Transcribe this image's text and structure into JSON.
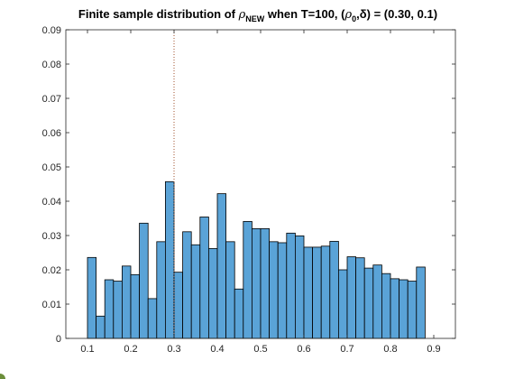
{
  "chart_data": {
    "type": "bar",
    "title": {
      "prefix": "Finite sample distribution of ",
      "rho": "ρ",
      "rho_subscript": "NEW",
      "mid": " when T=100, (",
      "rho0": "ρ",
      "rho0_subscript": "0",
      "tail": ",δ) = (0.30, 0.1)"
    },
    "xlabel": "",
    "ylabel": "",
    "xlim": [
      0.05,
      0.95
    ],
    "ylim": [
      0,
      0.09
    ],
    "x_ticks": [
      0.1,
      0.2,
      0.3,
      0.4,
      0.5,
      0.6,
      0.7,
      0.8,
      0.9
    ],
    "x_tick_labels": [
      "0.1",
      "0.2",
      "0.3",
      "0.4",
      "0.5",
      "0.6",
      "0.7",
      "0.8",
      "0.9"
    ],
    "y_ticks": [
      0,
      0.01,
      0.02,
      0.03,
      0.04,
      0.05,
      0.06,
      0.07,
      0.08,
      0.09
    ],
    "y_tick_labels": [
      "0",
      "0.01",
      "0.02",
      "0.03",
      "0.04",
      "0.05",
      "0.06",
      "0.07",
      "0.08",
      "0.09"
    ],
    "bin_start": 0.1,
    "bin_width": 0.02,
    "values": [
      0.0236,
      0.0065,
      0.0171,
      0.0167,
      0.0211,
      0.0186,
      0.0336,
      0.0116,
      0.0282,
      0.0457,
      0.0193,
      0.0311,
      0.0273,
      0.0354,
      0.0262,
      0.0422,
      0.0282,
      0.0144,
      0.0341,
      0.032,
      0.032,
      0.0282,
      0.0279,
      0.0307,
      0.0299,
      0.0266,
      0.0266,
      0.0269,
      0.0283,
      0.02,
      0.0238,
      0.0235,
      0.0205,
      0.0214,
      0.0189,
      0.0174,
      0.0171,
      0.0167,
      0.0208
    ],
    "reference_line_x": 0.3,
    "bar_color": "#5aa3d7",
    "bar_edge_color": "#000000",
    "reference_line_color": "#a0522d",
    "grid": false
  }
}
